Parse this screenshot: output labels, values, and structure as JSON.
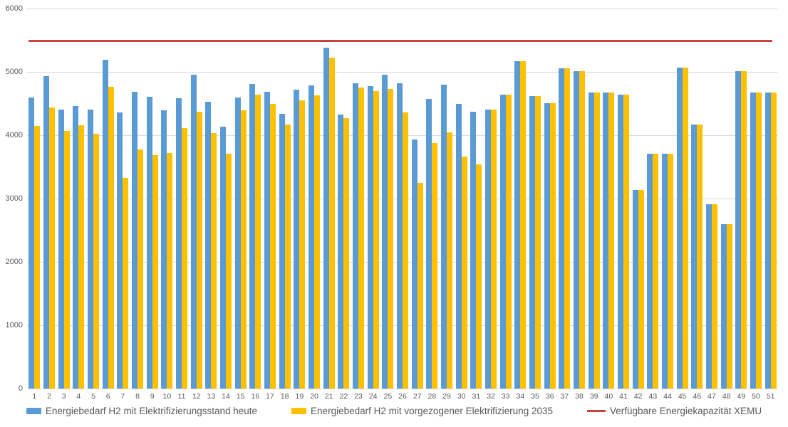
{
  "chart_data": {
    "type": "bar",
    "categories": [
      "1",
      "2",
      "3",
      "4",
      "5",
      "6",
      "7",
      "8",
      "9",
      "10",
      "11",
      "12",
      "13",
      "14",
      "15",
      "16",
      "17",
      "18",
      "19",
      "20",
      "21",
      "22",
      "23",
      "24",
      "25",
      "26",
      "27",
      "28",
      "29",
      "30",
      "31",
      "32",
      "33",
      "34",
      "35",
      "36",
      "37",
      "38",
      "39",
      "40",
      "41",
      "42",
      "43",
      "44",
      "45",
      "46",
      "47",
      "48",
      "49",
      "50",
      "51"
    ],
    "series": [
      {
        "name": "Energiebedarf H2 mit Elektrifizierungsstand heute",
        "color": "#5B9BD5",
        "values": [
          4600,
          4930,
          4400,
          4460,
          4410,
          5190,
          4360,
          4690,
          4610,
          4390,
          4580,
          4960,
          4530,
          4130,
          4600,
          4810,
          4690,
          4340,
          4720,
          4790,
          5380,
          4330,
          4820,
          4770,
          4950,
          4820,
          3930,
          4570,
          4800,
          4490,
          4370,
          4410,
          4640,
          5170,
          4620,
          4510,
          5060,
          5010,
          4670,
          4670,
          4640,
          3140,
          3710,
          3710,
          5070,
          4170,
          2910,
          2600,
          5010,
          4670,
          4670
        ]
      },
      {
        "name": "Energiebedarf H2 mit vorgezogener Elektrifizierung 2035",
        "color": "#FFC000",
        "values": [
          4150,
          4440,
          4070,
          4160,
          4020,
          4760,
          3330,
          3780,
          3690,
          3720,
          4110,
          4370,
          4030,
          3710,
          4390,
          4640,
          4490,
          4170,
          4550,
          4630,
          5220,
          4270,
          4750,
          4700,
          4730,
          4360,
          3250,
          3880,
          4040,
          3660,
          3540,
          4410,
          4640,
          5170,
          4620,
          4510,
          5060,
          5010,
          4670,
          4670,
          4640,
          3140,
          3710,
          3710,
          5070,
          4170,
          2910,
          2600,
          5010,
          4670,
          4670
        ]
      }
    ],
    "reference_line": {
      "name": "Verfügbare Energiekapazität XEMU",
      "value": 5500,
      "color": "#C8433E"
    },
    "title": "",
    "xlabel": "",
    "ylabel": "",
    "ylim": [
      0,
      6000
    ],
    "yticks": [
      0,
      1000,
      2000,
      3000,
      4000,
      5000,
      6000
    ],
    "grid": true,
    "legend_position": "bottom"
  },
  "style": {
    "gridline_color": "#d9d9d9",
    "tick_text_color": "#595959"
  }
}
